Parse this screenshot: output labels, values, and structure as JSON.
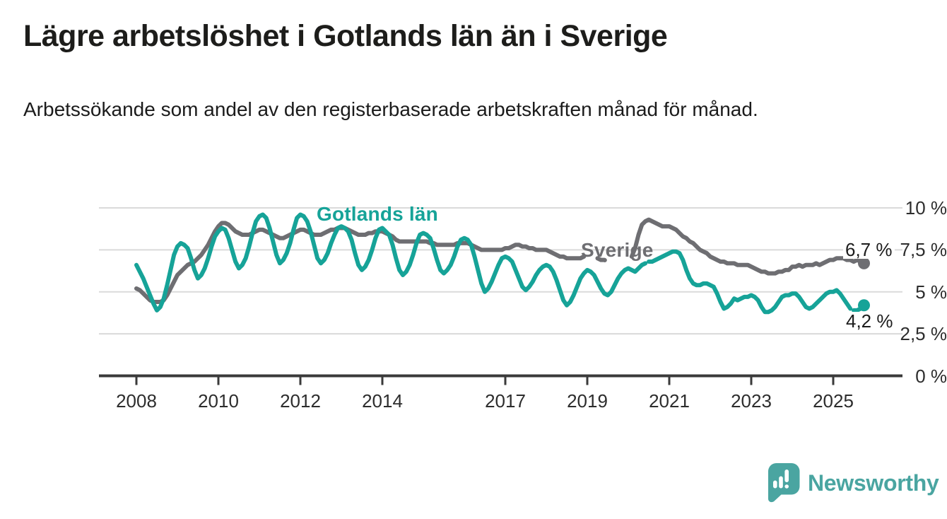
{
  "header": {
    "title": "Lägre arbetslöshet i Gotlands län än i Sverige",
    "subtitle": "Arbetssökande som andel av den registerbaserade arbetskraften månad för månad."
  },
  "chart_data": {
    "type": "line",
    "x_start": "2008-01",
    "x_end": "2025-10",
    "x_unit": "month",
    "x_tick_years": [
      2008,
      2010,
      2012,
      2014,
      2017,
      2019,
      2021,
      2023,
      2025
    ],
    "y_ticks": [
      {
        "label": "0 %",
        "value": 0
      },
      {
        "label": "2,5 %",
        "value": 2.5
      },
      {
        "label": "5 %",
        "value": 5
      },
      {
        "label": "7,5 %",
        "value": 7.5
      },
      {
        "label": "10 %",
        "value": 10
      }
    ],
    "ylim": [
      0,
      10
    ],
    "grid": "horizontal",
    "legend_position": "inline-labels",
    "series": [
      {
        "name": "Sverige",
        "color": "#6e6e72",
        "end_label": "6,7 %",
        "end_value": 6.7,
        "masks": [
          {
            "hide": [
              131,
              145
            ],
            "dash": [
              135,
              138
            ]
          }
        ],
        "values": [
          5.2,
          5.1,
          4.9,
          4.7,
          4.5,
          4.4,
          4.4,
          4.4,
          4.5,
          4.8,
          5.2,
          5.6,
          6.0,
          6.2,
          6.4,
          6.6,
          6.7,
          6.8,
          7.0,
          7.2,
          7.5,
          7.8,
          8.2,
          8.6,
          8.9,
          9.1,
          9.1,
          9.0,
          8.8,
          8.6,
          8.5,
          8.4,
          8.4,
          8.4,
          8.5,
          8.6,
          8.7,
          8.7,
          8.6,
          8.5,
          8.4,
          8.3,
          8.2,
          8.2,
          8.3,
          8.4,
          8.5,
          8.6,
          8.7,
          8.7,
          8.6,
          8.5,
          8.4,
          8.4,
          8.4,
          8.5,
          8.6,
          8.7,
          8.7,
          8.8,
          8.8,
          8.8,
          8.7,
          8.6,
          8.5,
          8.4,
          8.4,
          8.4,
          8.5,
          8.5,
          8.6,
          8.6,
          8.6,
          8.5,
          8.4,
          8.3,
          8.1,
          8.0,
          8.0,
          8.0,
          8.0,
          8.0,
          8.0,
          8.0,
          8.0,
          8.0,
          7.9,
          7.9,
          7.8,
          7.8,
          7.8,
          7.8,
          7.8,
          7.8,
          7.9,
          7.9,
          7.9,
          7.9,
          7.8,
          7.7,
          7.6,
          7.5,
          7.5,
          7.5,
          7.5,
          7.5,
          7.5,
          7.5,
          7.6,
          7.6,
          7.7,
          7.8,
          7.8,
          7.7,
          7.7,
          7.6,
          7.6,
          7.5,
          7.5,
          7.5,
          7.5,
          7.4,
          7.3,
          7.2,
          7.1,
          7.1,
          7.0,
          7.0,
          7.0,
          7.0,
          7.0,
          7.1,
          7.1,
          7.1,
          7.0,
          7.0,
          6.9,
          6.9,
          6.8,
          6.8,
          6.9,
          6.9,
          6.9,
          7.0,
          7.0,
          7.1,
          7.6,
          8.4,
          9.0,
          9.2,
          9.3,
          9.2,
          9.1,
          9.0,
          8.9,
          8.9,
          8.9,
          8.8,
          8.7,
          8.5,
          8.3,
          8.2,
          8.0,
          7.9,
          7.7,
          7.5,
          7.4,
          7.3,
          7.1,
          7.0,
          6.9,
          6.8,
          6.8,
          6.7,
          6.7,
          6.7,
          6.6,
          6.6,
          6.6,
          6.6,
          6.5,
          6.4,
          6.3,
          6.2,
          6.2,
          6.1,
          6.1,
          6.1,
          6.2,
          6.2,
          6.3,
          6.3,
          6.5,
          6.5,
          6.6,
          6.5,
          6.6,
          6.6,
          6.6,
          6.7,
          6.6,
          6.7,
          6.8,
          6.9,
          6.9,
          7.0,
          7.0,
          7.0,
          6.9,
          6.9,
          6.8,
          6.9,
          6.8,
          6.7
        ]
      },
      {
        "name": "Gotlands län",
        "color": "#16a398",
        "end_label": "4,2 %",
        "end_value": 4.2,
        "masks": [
          {
            "hide": [
              149,
              152
            ],
            "dash": [
              150,
              152
            ]
          },
          {
            "hide": [
              209,
              213
            ],
            "dash": [
              210,
              212
            ]
          }
        ],
        "values": [
          6.6,
          6.2,
          5.8,
          5.3,
          4.8,
          4.3,
          3.9,
          4.1,
          4.6,
          5.4,
          6.3,
          7.2,
          7.7,
          7.9,
          7.8,
          7.6,
          7.0,
          6.3,
          5.8,
          6.0,
          6.4,
          7.0,
          7.7,
          8.3,
          8.6,
          8.8,
          8.7,
          8.2,
          7.5,
          6.8,
          6.4,
          6.6,
          7.0,
          7.7,
          8.5,
          9.2,
          9.5,
          9.6,
          9.4,
          8.8,
          8.0,
          7.2,
          6.7,
          6.9,
          7.3,
          7.9,
          8.7,
          9.4,
          9.6,
          9.5,
          9.2,
          8.6,
          7.8,
          7.0,
          6.7,
          6.9,
          7.3,
          7.9,
          8.4,
          8.8,
          8.9,
          8.8,
          8.6,
          8.1,
          7.3,
          6.6,
          6.3,
          6.5,
          6.9,
          7.5,
          8.2,
          8.7,
          8.8,
          8.6,
          8.4,
          7.8,
          7.0,
          6.3,
          6.0,
          6.2,
          6.6,
          7.2,
          7.9,
          8.4,
          8.5,
          8.4,
          8.2,
          7.6,
          6.9,
          6.3,
          6.1,
          6.3,
          6.6,
          7.1,
          7.7,
          8.1,
          8.2,
          8.1,
          7.8,
          7.1,
          6.3,
          5.5,
          5.0,
          5.2,
          5.6,
          6.1,
          6.6,
          7.0,
          7.1,
          7.0,
          6.8,
          6.3,
          5.8,
          5.3,
          5.1,
          5.3,
          5.6,
          6.0,
          6.3,
          6.5,
          6.6,
          6.5,
          6.2,
          5.7,
          5.1,
          4.5,
          4.2,
          4.4,
          4.8,
          5.3,
          5.8,
          6.1,
          6.3,
          6.2,
          6.0,
          5.6,
          5.2,
          4.9,
          4.8,
          5.0,
          5.4,
          5.8,
          6.1,
          6.3,
          6.4,
          6.3,
          6.2,
          6.4,
          6.6,
          6.7,
          6.8,
          6.8,
          6.9,
          7.0,
          7.1,
          7.2,
          7.3,
          7.4,
          7.4,
          7.3,
          6.9,
          6.3,
          5.8,
          5.5,
          5.4,
          5.4,
          5.5,
          5.5,
          5.4,
          5.3,
          4.9,
          4.4,
          4.0,
          4.1,
          4.3,
          4.6,
          4.5,
          4.6,
          4.7,
          4.7,
          4.8,
          4.7,
          4.5,
          4.1,
          3.8,
          3.8,
          3.9,
          4.1,
          4.4,
          4.7,
          4.8,
          4.8,
          4.9,
          4.9,
          4.7,
          4.4,
          4.1,
          4.0,
          4.1,
          4.3,
          4.5,
          4.7,
          4.9,
          5.0,
          5.0,
          5.1,
          4.9,
          4.6,
          4.3,
          4.0,
          3.9,
          3.9,
          4.0,
          4.2
        ]
      }
    ]
  },
  "footer": {
    "brand": "Newsworthy",
    "brand_color": "#4aa5a1",
    "logo_icon": "speech-bubble-bar-chart-icon"
  }
}
